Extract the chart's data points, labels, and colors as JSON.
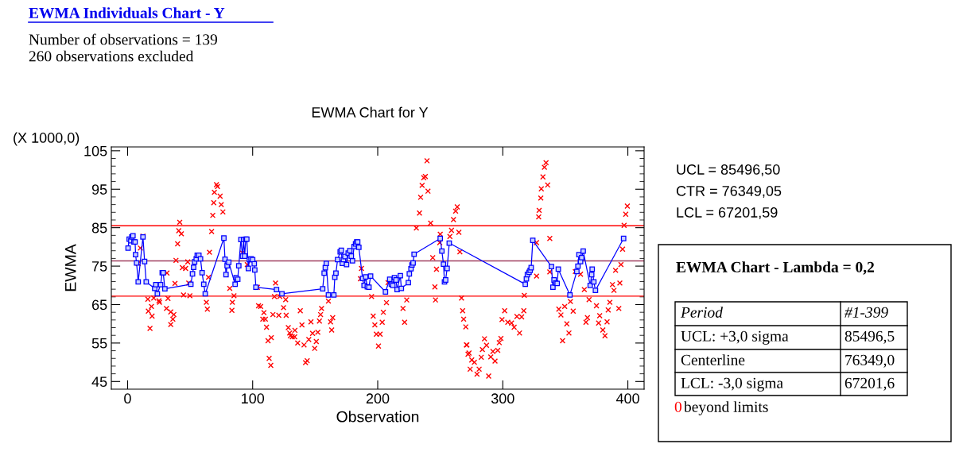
{
  "chart_data": {
    "type": "line",
    "title": "EWMA Individuals Chart - Y",
    "subtitle": "Number of observations = 139\n260 observations excluded",
    "xlabel": "Observation",
    "ylabel": "EWMA",
    "xlim": [
      -13,
      413
    ],
    "xticks": [
      0,
      100,
      200,
      300,
      400
    ],
    "ylim": [
      43,
      106
    ],
    "yticks": [
      45,
      55,
      65,
      75,
      85,
      95,
      105
    ],
    "grid": false,
    "legend": false,
    "ref_lines": [
      {
        "axis": "y",
        "value": 85.4965,
        "color": "#ff0000"
      },
      {
        "axis": "y",
        "value": 76.34905,
        "color": "#a04060"
      },
      {
        "axis": "y",
        "value": 67.20159,
        "color": "#ff0000"
      }
    ],
    "annotations": [
      "EWMA Chart for Y",
      "(X 1000,0)",
      "UCL = 85496,50",
      "CTR = 76349,05",
      "LCL = 67201,59",
      "EWMA Chart - Lambda = 0,2",
      "Period",
      "#1-399",
      "UCL: +3,0 sigma",
      "85496,5",
      "Centerline",
      "76349,0",
      "LCL: -3,0 sigma",
      "67201,6",
      "0",
      "beyond limits"
    ],
    "series": [
      {
        "type": "scatter",
        "color": "#ff0000",
        "marker": "cross",
        "x": [
          8.5,
          10.2,
          12.3,
          16.2,
          16.6,
          17.9,
          19.1,
          19.6,
          20.9,
          25.1,
          25.5,
          31.1,
          31.5,
          32.3,
          34.5,
          34.5,
          36.2,
          37.0,
          37.9,
          38.7,
          40.0,
          40.9,
          41.7,
          43.0,
          43.8,
          44.7,
          46.4,
          48.1,
          48.9,
          49.8,
          63.0,
          63.8,
          64.7,
          65.5,
          67.2,
          68.1,
          68.9,
          69.4,
          71.1,
          71.9,
          74.0,
          74.9,
          76.2,
          81.7,
          83.4,
          83.8,
          85.1,
          91.9,
          95.7,
          103.8,
          104.7,
          106.4,
          108.1,
          109.0,
          110.2,
          111.1,
          112.3,
          113.2,
          114.5,
          114.9,
          116.2,
          117.4,
          118.3,
          120.9,
          121.7,
          124.7,
          126.4,
          126.8,
          128.5,
          130.2,
          133.6,
          129.6,
          131.7,
          133.8,
          136.0,
          138.1,
          139.4,
          141.1,
          142.3,
          143.6,
          144.9,
          146.6,
          147.9,
          149.6,
          150.9,
          152.1,
          153.4,
          154.3,
          155.1,
          160.6,
          162.3,
          163.2,
          164.0,
          186.2,
          187.0,
          195.1,
          196.4,
          197.7,
          198.9,
          200.6,
          201.9,
          203.6,
          204.5,
          207.0,
          208.3,
          220.2,
          221.5,
          223.2,
          230.9,
          233.4,
          234.3,
          235.5,
          236.8,
          238.1,
          239.4,
          240.2,
          242.3,
          244.0,
          245.7,
          246.2,
          247.0,
          249.6,
          250.0,
          257.7,
          259.0,
          260.6,
          262.3,
          263.6,
          264.9,
          265.7,
          267.0,
          267.9,
          268.7,
          270.4,
          271.3,
          273.0,
          270.9,
          272.2,
          273.9,
          275.2,
          277.3,
          279.4,
          281.1,
          282.8,
          283.7,
          285.4,
          287.0,
          288.7,
          290.4,
          292.1,
          293.8,
          296.0,
          297.2,
          298.5,
          299.4,
          301.5,
          304.0,
          307.0,
          309.1,
          311.3,
          313.4,
          315.1,
          316.8,
          317.2,
          327.0,
          327.0,
          328.7,
          329.1,
          330.4,
          330.8,
          332.1,
          333.3,
          334.6,
          335.9,
          337.6,
          337.6,
          344.8,
          346.5,
          347.8,
          349.5,
          351.2,
          352.9,
          354.1,
          356.3,
          358.0,
          362.2,
          365.2,
          366.5,
          367.7,
          369.0,
          374.9,
          376.6,
          377.5,
          380.0,
          381.7,
          383.4,
          384.3,
          385.6,
          387.7,
          388.9,
          390.2,
          392.8,
          393.6,
          394.5,
          395.8,
          397.0,
          398.3,
          399.6
        ],
        "values": [
          75.7,
          79.7,
          82.8,
          66.4,
          63.3,
          58.8,
          64.5,
          62.0,
          66.7,
          66.0,
          65.6,
          64.0,
          73.2,
          66.6,
          63.1,
          59.8,
          61.2,
          62.4,
          70.5,
          76.5,
          80.8,
          84.2,
          86.4,
          83.4,
          74.6,
          67.5,
          74.4,
          76.1,
          70.6,
          67.3,
          65.6,
          63.8,
          72.1,
          78.6,
          84.0,
          88.2,
          91.5,
          94.2,
          96.2,
          95.7,
          93.2,
          91.0,
          89.1,
          69.2,
          63.5,
          65.6,
          67.3,
          78.4,
          75.4,
          69.5,
          64.7,
          64.5,
          61.2,
          62.9,
          61.2,
          59.1,
          55.6,
          51.0,
          49.2,
          56.4,
          62.4,
          67.1,
          70.6,
          62.2,
          67.1,
          64.2,
          66.3,
          62.2,
          59.0,
          56.9,
          56.6,
          57.6,
          56.6,
          58.3,
          55.0,
          63.4,
          59.7,
          54.5,
          49.9,
          50.4,
          55.9,
          60.5,
          57.5,
          53.6,
          55.4,
          57.8,
          60.7,
          62.4,
          64.0,
          65.9,
          60.5,
          58.4,
          61.6,
          71.7,
          74.4,
          67.1,
          62.0,
          59.7,
          57.3,
          54.2,
          57.3,
          60.4,
          63.0,
          65.5,
          70.7,
          64.0,
          60.4,
          66.2,
          84.9,
          88.8,
          92.9,
          96.0,
          98.0,
          98.3,
          102.4,
          94.5,
          86.2,
          77.2,
          69.6,
          66.2,
          74.2,
          81.1,
          83.3,
          82.7,
          84.3,
          87.1,
          89.3,
          90.4,
          83.8,
          78.7,
          66.7,
          63.4,
          61.2,
          59.2,
          54.5,
          52.4,
          54.5,
          52.1,
          48.2,
          50.6,
          50.0,
          46.9,
          48.2,
          51.3,
          53.3,
          56.1,
          54.4,
          46.4,
          51.4,
          52.8,
          50.3,
          53.1,
          55.1,
          56.2,
          61.1,
          63.4,
          60.4,
          60.2,
          59.1,
          61.9,
          57.6,
          61.8,
          63.4,
          67.4,
          81.1,
          72.4,
          87.8,
          89.5,
          92.7,
          95.1,
          98.2,
          100.7,
          101.9,
          96.1,
          82.2,
          73.5,
          63.8,
          62.3,
          55.6,
          64.5,
          60.0,
          57.6,
          65.8,
          63.3,
          73.6,
          72.9,
          68.9,
          60.4,
          61.6,
          66.3,
          64.7,
          60.2,
          62.1,
          58.4,
          56.9,
          60.5,
          63.6,
          65.6,
          70.2,
          68.7,
          73.9,
          64.0,
          70.6,
          75.4,
          79.4,
          85.6,
          88.5,
          90.6
        ]
      },
      {
        "color": "#0000ff",
        "marker": "square",
        "line_style": "solid",
        "x": [
          0.4,
          1.3,
          2.6,
          3.4,
          4.3,
          5.1,
          6.0,
          6.4,
          7.2,
          8.5,
          12.3,
          13.6,
          14.9,
          21.7,
          22.6,
          23.8,
          26.4,
          27.7,
          28.5,
          29.8,
          50.6,
          51.9,
          52.8,
          53.6,
          54.9,
          55.7,
          57.0,
          58.3,
          59.6,
          60.9,
          62.1,
          77.0,
          77.9,
          78.7,
          79.6,
          80.9,
          86.0,
          86.8,
          88.1,
          88.9,
          90.6,
          91.9,
          92.8,
          93.6,
          94.5,
          95.3,
          96.6,
          97.4,
          98.7,
          100.0,
          101.3,
          101.7,
          102.6,
          119.1,
          123.4,
          156.0,
          157.2,
          158.1,
          158.9,
          160.6,
          164.9,
          165.7,
          166.6,
          167.9,
          170.0,
          170.9,
          171.7,
          172.6,
          173.8,
          175.1,
          176.4,
          177.7,
          178.9,
          179.8,
          181.1,
          182.3,
          183.2,
          184.0,
          184.9,
          187.9,
          189.1,
          190.4,
          191.7,
          193.0,
          194.3,
          206.2,
          209.6,
          210.9,
          212.1,
          213.4,
          214.7,
          215.5,
          218.1,
          218.9,
          224.5,
          225.3,
          226.6,
          227.4,
          228.3,
          229.1,
          250.0,
          251.3,
          252.6,
          253.4,
          254.3,
          255.5,
          257.2,
          318.0,
          318.9,
          319.7,
          321.0,
          321.9,
          322.7,
          324.0,
          338.9,
          340.1,
          341.0,
          342.3,
          343.5,
          344.4,
          353.7,
          359.2,
          360.1,
          360.9,
          362.2,
          363.1,
          364.3,
          369.9,
          371.1,
          371.5,
          372.8,
          374.1,
          396.6
        ],
        "values": [
          79.7,
          82.0,
          81.6,
          82.6,
          82.9,
          81.3,
          81.3,
          78.0,
          75.8,
          70.9,
          82.6,
          76.2,
          70.9,
          69.2,
          70.2,
          67.8,
          70.2,
          73.3,
          73.3,
          69.1,
          70.3,
          73.0,
          74.7,
          76.1,
          76.9,
          77.8,
          77.8,
          76.9,
          73.3,
          70.3,
          67.8,
          82.3,
          76.8,
          72.8,
          75.1,
          76.0,
          70.3,
          72.0,
          71.6,
          75.1,
          81.9,
          77.6,
          81.9,
          77.6,
          82.0,
          82.0,
          74.4,
          76.7,
          76.9,
          76.7,
          75.6,
          74.0,
          69.5,
          68.9,
          67.8,
          69.1,
          73.2,
          74.6,
          75.7,
          67.5,
          67.5,
          72.1,
          73.2,
          76.7,
          78.7,
          79.1,
          75.7,
          76.7,
          77.5,
          75.4,
          78.4,
          79.0,
          77.6,
          76.4,
          80.1,
          80.8,
          81.3,
          81.3,
          79.9,
          71.8,
          70.0,
          72.2,
          69.6,
          69.5,
          72.4,
          68.3,
          71.6,
          70.3,
          70.0,
          72.0,
          71.4,
          68.9,
          72.5,
          69.2,
          70.7,
          73.0,
          74.3,
          75.3,
          75.8,
          78.1,
          82.2,
          78.9,
          75.5,
          70.9,
          71.4,
          74.4,
          81.0,
          70.3,
          71.7,
          72.8,
          73.4,
          73.9,
          74.6,
          81.7,
          74.9,
          69.5,
          71.4,
          70.6,
          70.5,
          74.2,
          67.5,
          73.6,
          75.0,
          78.0,
          76.2,
          77.2,
          78.9,
          70.0,
          72.8,
          74.2,
          70.9,
          68.7,
          82.2
        ]
      }
    ]
  }
}
